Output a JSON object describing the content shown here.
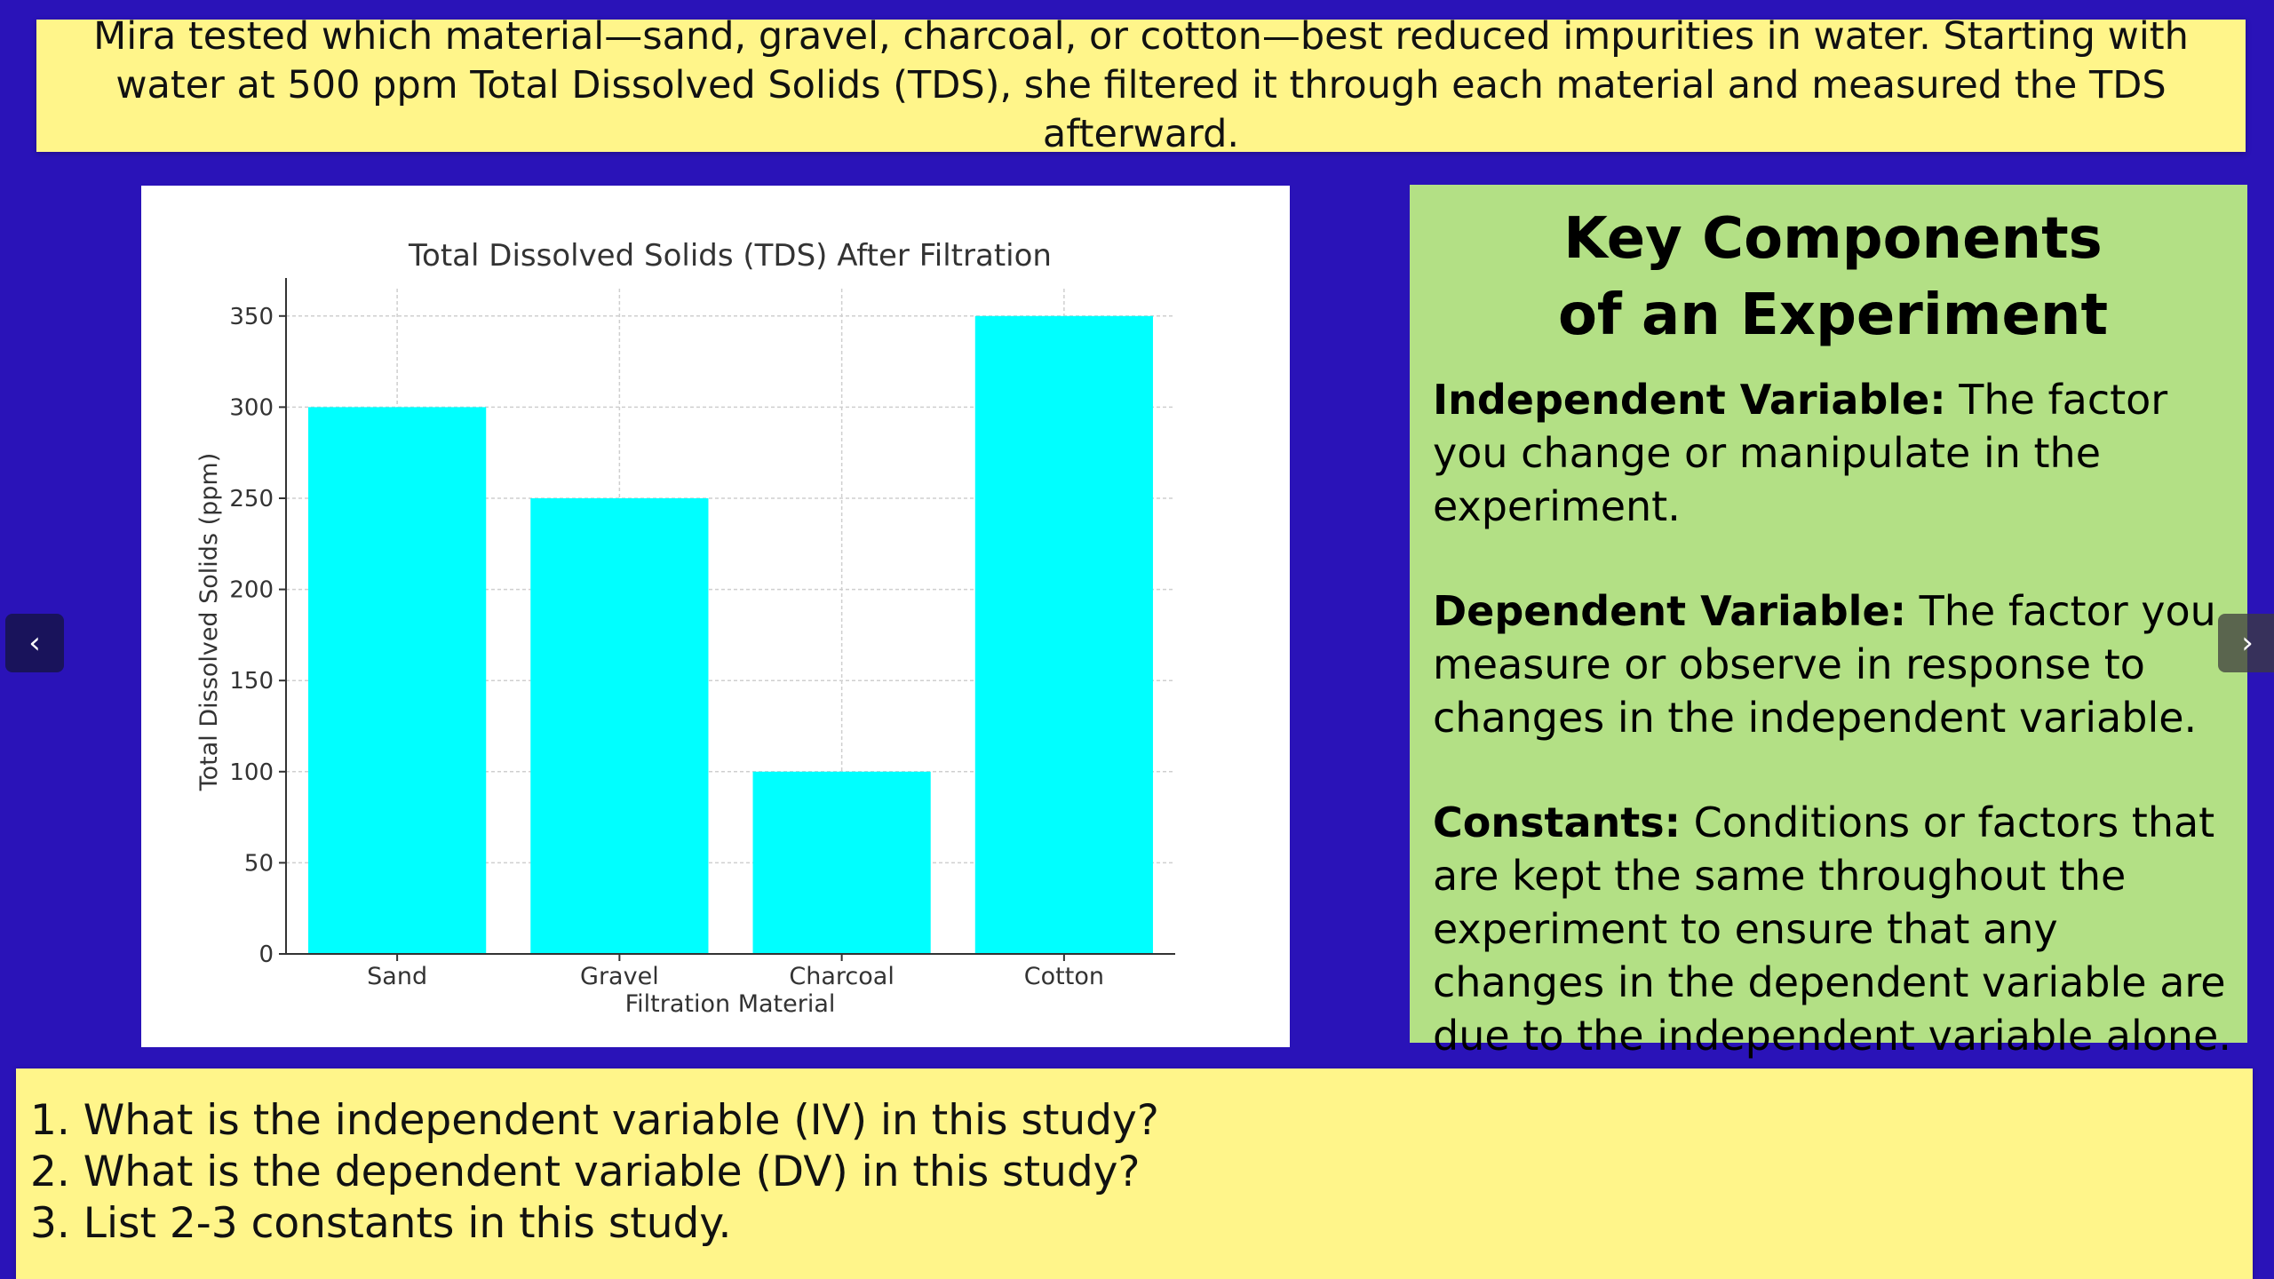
{
  "intro": {
    "text": "Mira tested which material—sand, gravel, charcoal, or cotton—best reduced impurities in water. Starting with water at 500 ppm  Total Dissolved Solids (TDS), she filtered it through each material and measured the TDS afterward."
  },
  "chart_data": {
    "type": "bar",
    "title": "Total Dissolved Solids (TDS) After Filtration",
    "xlabel": "Filtration Material",
    "ylabel": "Total Dissolved Solids (ppm)",
    "categories": [
      "Sand",
      "Gravel",
      "Charcoal",
      "Cotton"
    ],
    "values": [
      300,
      250,
      100,
      350
    ],
    "ylim": [
      0,
      365
    ],
    "yticks": [
      0,
      50,
      100,
      150,
      200,
      250,
      300,
      350
    ],
    "grid": true,
    "bar_color": "#00ffff"
  },
  "key": {
    "title_line1": "Key Components",
    "title_line2": "of an Experiment",
    "iv_term": "Independent Variable:",
    "iv_def": " The factor you change or manipulate in the experiment.",
    "dv_term": "Dependent Variable:",
    "dv_def": " The factor you measure or observe in response to changes in the independent variable.",
    "const_term": "Constants:",
    "const_def": " Conditions or factors that are kept the same throughout the experiment to ensure that any changes in the dependent variable are due to the independent variable alone."
  },
  "questions": [
    "1. What is the independent variable (IV) in this study?",
    "2. What is the dependent variable (DV) in this study?",
    "3. List 2-3 constants in this study."
  ],
  "nav": {
    "prev_label": "‹",
    "next_label": "›"
  },
  "colors": {
    "background": "#2a13b8",
    "yellow": "#fff58a",
    "green": "#b3e085"
  }
}
